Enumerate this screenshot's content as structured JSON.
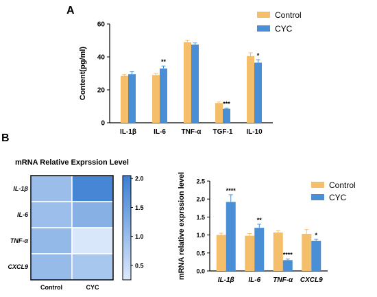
{
  "panel_labels": {
    "a": "A",
    "b": "B"
  },
  "colors": {
    "control": "#F5BE6B",
    "cyc": "#4A8FD6",
    "axis": "#000000"
  },
  "chart_data": [
    {
      "id": "A",
      "type": "bar",
      "ylabel": "Content(pg/ml)",
      "ylim": [
        0,
        60
      ],
      "yticks": [
        0,
        20,
        40,
        60
      ],
      "categories": [
        "IL-1β",
        "IL-6",
        "TNF-α",
        "TGF-1",
        "IL-10"
      ],
      "series": [
        {
          "name": "Control",
          "color": "#F5BE6B",
          "values": [
            28.5,
            29,
            49,
            12,
            40.5
          ],
          "errors": [
            0.8,
            1,
            1.2,
            0.6,
            2
          ]
        },
        {
          "name": "CYC",
          "color": "#4A8FD6",
          "values": [
            29.5,
            33,
            47.5,
            8.5,
            36.5
          ],
          "errors": [
            1.5,
            1.5,
            1,
            0.4,
            1.8
          ]
        }
      ],
      "significance": [
        "",
        "**",
        "",
        "***",
        "*"
      ],
      "legend": "top-right",
      "grid": false
    },
    {
      "id": "B-heatmap",
      "type": "heatmap",
      "title": "mRNA Relative Exprssion Level",
      "rows": [
        "IL-1β",
        "IL-6",
        "TNF-α",
        "CXCL9"
      ],
      "columns": [
        "Control",
        "CYC"
      ],
      "values": [
        [
          1.0,
          1.92
        ],
        [
          0.98,
          1.2
        ],
        [
          1.07,
          0.3
        ],
        [
          1.03,
          0.84
        ]
      ],
      "colorbar": {
        "min": 0.25,
        "max": 2.05,
        "ticks": [
          0.5,
          1.0,
          1.5,
          2.0
        ],
        "tick_labels": [
          "0.5",
          "1.0",
          "1.5",
          "2.0"
        ]
      }
    },
    {
      "id": "B-bar",
      "type": "bar",
      "ylabel": "mRNA relative exprssion level",
      "ylim": [
        0,
        2.5
      ],
      "yticks": [
        0.0,
        0.5,
        1.0,
        1.5,
        2.0,
        2.5
      ],
      "ytick_labels": [
        "0.0",
        "0.5",
        "1.0",
        "1.5",
        "2.0",
        "2.5"
      ],
      "categories": [
        "IL-1β",
        "IL-6",
        "TNF-α",
        "CXCL9"
      ],
      "series": [
        {
          "name": "Control",
          "color": "#F5BE6B",
          "values": [
            1.0,
            0.98,
            1.07,
            1.03
          ],
          "errors": [
            0.05,
            0.06,
            0.05,
            0.12
          ]
        },
        {
          "name": "CYC",
          "color": "#4A8FD6",
          "values": [
            1.92,
            1.2,
            0.3,
            0.84
          ],
          "errors": [
            0.2,
            0.1,
            0.03,
            0.04
          ]
        }
      ],
      "significance": [
        "****",
        "**",
        "****",
        "*"
      ],
      "legend": "top-right",
      "grid": false
    }
  ]
}
